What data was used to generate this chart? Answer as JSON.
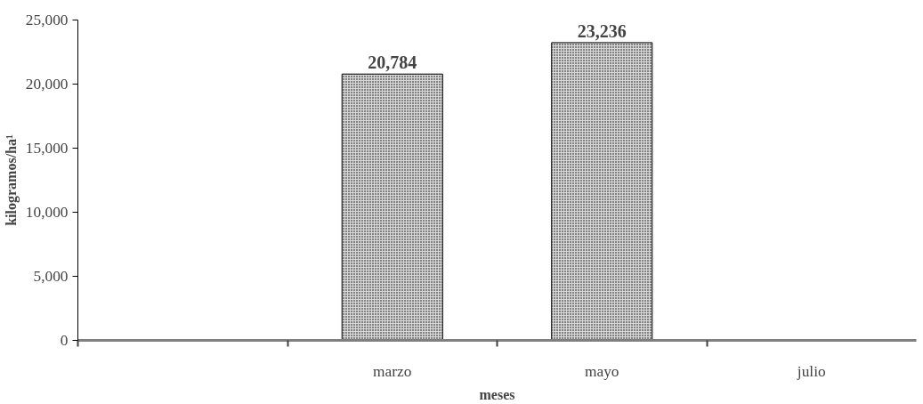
{
  "chart_data": {
    "type": "bar",
    "categories": [
      null,
      "marzo",
      "mayo",
      "julio"
    ],
    "values": [
      null,
      20784,
      23236,
      null
    ],
    "color": "#d9d9d9",
    "xlabel": "meses",
    "ylabel": "kilogramos/ha¹",
    "ylim": [
      0,
      25000
    ],
    "yticks": [
      {
        "value": 0,
        "label": "0"
      },
      {
        "value": 5000,
        "label": "5,000"
      },
      {
        "value": 10000,
        "label": "10,000"
      },
      {
        "value": 15000,
        "label": "15,000"
      },
      {
        "value": 20000,
        "label": "20,000"
      },
      {
        "value": 25000,
        "label": "25,000"
      }
    ],
    "value_labels": [
      null,
      "20,784",
      "23,236",
      null
    ],
    "grid": false
  }
}
